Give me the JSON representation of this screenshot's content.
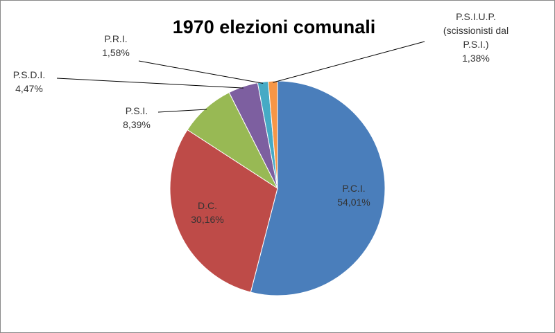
{
  "chart_data": {
    "type": "pie",
    "title": "1970 elezioni comunali",
    "categories": [
      "P.C.I.",
      "D.C.",
      "P.S.I.",
      "P.S.D.I.",
      "P.R.I.",
      "P.S.I.U.P. (scissionisti dal P.S.I.)"
    ],
    "values": [
      54.01,
      30.16,
      8.39,
      4.47,
      1.58,
      1.38
    ],
    "value_labels": [
      "54,01%",
      "30,16%",
      "8,39%",
      "4,47%",
      "1,58%",
      "1,38%"
    ],
    "colors": [
      "#4a7ebb",
      "#be4b48",
      "#98b954",
      "#7d5fa0",
      "#46aac5",
      "#f79646"
    ]
  }
}
